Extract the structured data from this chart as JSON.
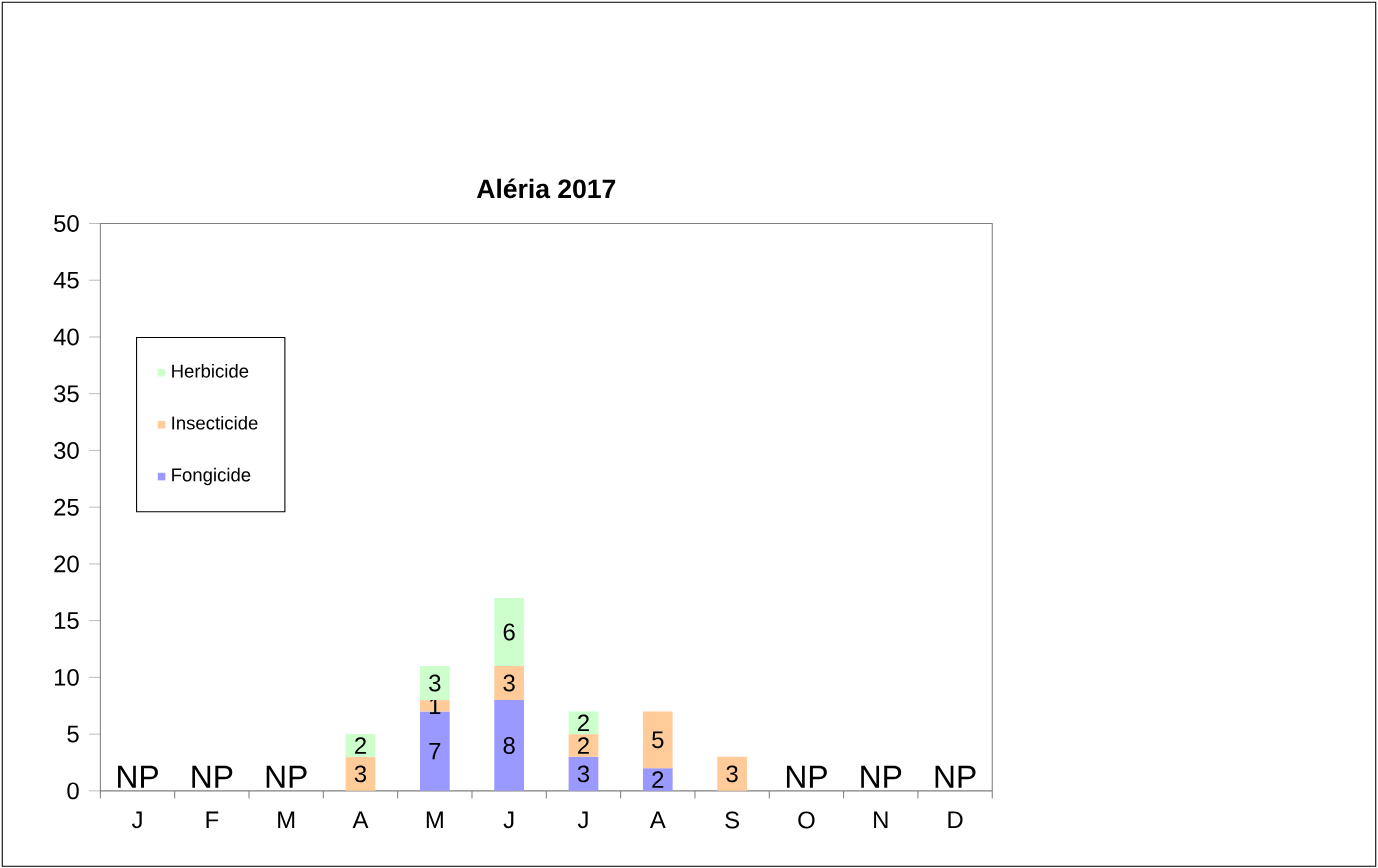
{
  "chart_data": {
    "type": "bar",
    "title": "Aléria 2017",
    "stacked": true,
    "data_labels": true,
    "grid": false,
    "legend": "left",
    "categories": [
      "J",
      "F",
      "M",
      "A",
      "M",
      "J",
      "J",
      "A",
      "S",
      "O",
      "N",
      "D"
    ],
    "series": [
      {
        "name": "Fongicide",
        "color": "#9999ff",
        "values": [
          null,
          null,
          null,
          null,
          7,
          8,
          3,
          2,
          null,
          null,
          null,
          null
        ]
      },
      {
        "name": "Insecticide",
        "color": "#ffcc99",
        "values": [
          null,
          null,
          null,
          3,
          1,
          3,
          2,
          5,
          3,
          null,
          null,
          null
        ]
      },
      {
        "name": "Herbicide",
        "color": "#ccffcc",
        "values": [
          null,
          null,
          null,
          2,
          3,
          6,
          2,
          null,
          null,
          null,
          null,
          null
        ]
      }
    ],
    "ylim": [
      0,
      50
    ],
    "yticks": [
      0,
      5,
      10,
      15,
      20,
      25,
      30,
      35,
      40,
      45,
      50
    ],
    "annotations": [
      "NP",
      "NP",
      "NP",
      "NP",
      "NP",
      "NP"
    ]
  }
}
